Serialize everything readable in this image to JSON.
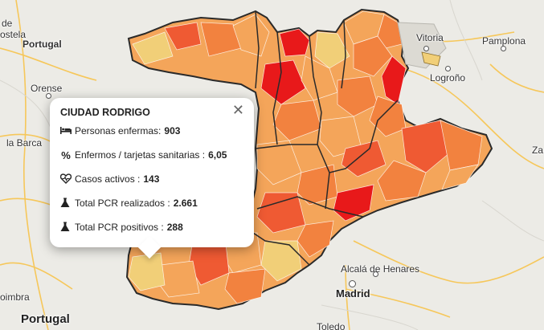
{
  "map": {
    "places": [
      {
        "key": "santiago",
        "text": "de"
      },
      {
        "key": "compostela",
        "text": "ostela"
      },
      {
        "key": "portugal_top",
        "text": "Portugal"
      },
      {
        "key": "orense",
        "text": "Orense"
      },
      {
        "key": "labarca",
        "text": "la Barca"
      },
      {
        "key": "vitoria",
        "text": "Vitoria"
      },
      {
        "key": "pamplona",
        "text": "Pamplona"
      },
      {
        "key": "logrono",
        "text": "Logroño"
      },
      {
        "key": "alcala",
        "text": "Alcalá de Henares"
      },
      {
        "key": "madrid",
        "text": "Madrid"
      },
      {
        "key": "coimbra",
        "text": "oimbra"
      },
      {
        "key": "portugal_bottom",
        "text": "Portugal"
      },
      {
        "key": "toledo",
        "text": "Toledo"
      },
      {
        "key": "za",
        "text": "Za"
      }
    ]
  },
  "popup": {
    "title": "CIUDAD RODRIGO",
    "close_glyph": "✕",
    "rows": [
      {
        "icon": "bed-icon",
        "label": "Personas enfermas:",
        "value": "903"
      },
      {
        "icon": "percent-icon",
        "label": "Enfermos / tarjetas sanitarias :",
        "value": "6,05"
      },
      {
        "icon": "heartbeat-icon",
        "label": "Casos activos :",
        "value": "143"
      },
      {
        "icon": "flask-icon",
        "label": "Total PCR realizados :",
        "value": "2.661"
      },
      {
        "icon": "flask-icon",
        "label": "Total PCR positivos :",
        "value": "288"
      }
    ]
  },
  "colors": {
    "very_high": "#e8191a",
    "high": "#ef5a33",
    "medium_high": "#f2823f",
    "medium": "#f4a55a",
    "low": "#f1cf78",
    "background": "#ecebe6"
  }
}
